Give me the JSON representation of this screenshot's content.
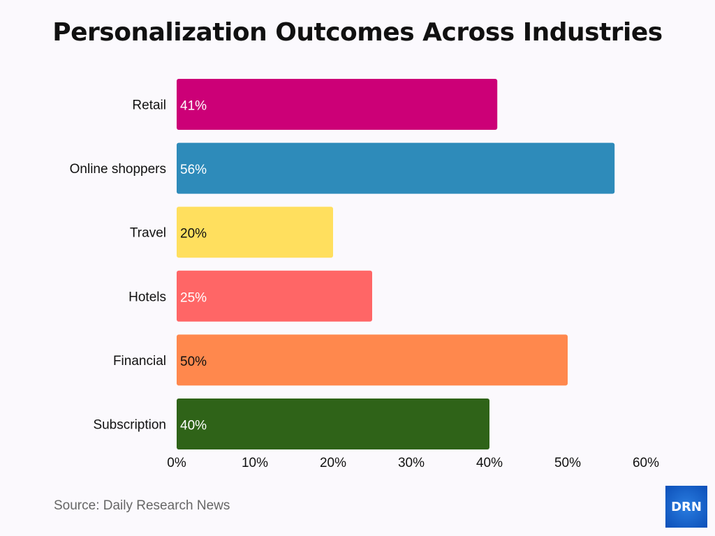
{
  "chart_data": {
    "type": "bar",
    "orientation": "horizontal",
    "title": "Personalization Outcomes Across Industries",
    "categories": [
      "Retail",
      "Online shoppers",
      "Travel",
      "Hotels",
      "Financial",
      "Subscription"
    ],
    "values": [
      41,
      56,
      20,
      25,
      50,
      40
    ],
    "data_labels": [
      "41%",
      "56%",
      "20%",
      "25%",
      "50%",
      "40%"
    ],
    "colors": [
      "#cc0077",
      "#2e8bba",
      "#ffdf5e",
      "#ff6666",
      "#ff884d",
      "#2f6318"
    ],
    "label_colors": [
      "#ffffff",
      "#ffffff",
      "#111111",
      "#ffffff",
      "#111111",
      "#ffffff"
    ],
    "xlim": [
      0,
      60
    ],
    "xticks": [
      0,
      10,
      20,
      30,
      40,
      50,
      60
    ],
    "xtick_labels": [
      "0%",
      "10%",
      "20%",
      "30%",
      "40%",
      "50%",
      "60%"
    ],
    "grid": false,
    "xlabel": "",
    "ylabel": ""
  },
  "source": "Source: Daily Research News",
  "logo_text": "DRN"
}
